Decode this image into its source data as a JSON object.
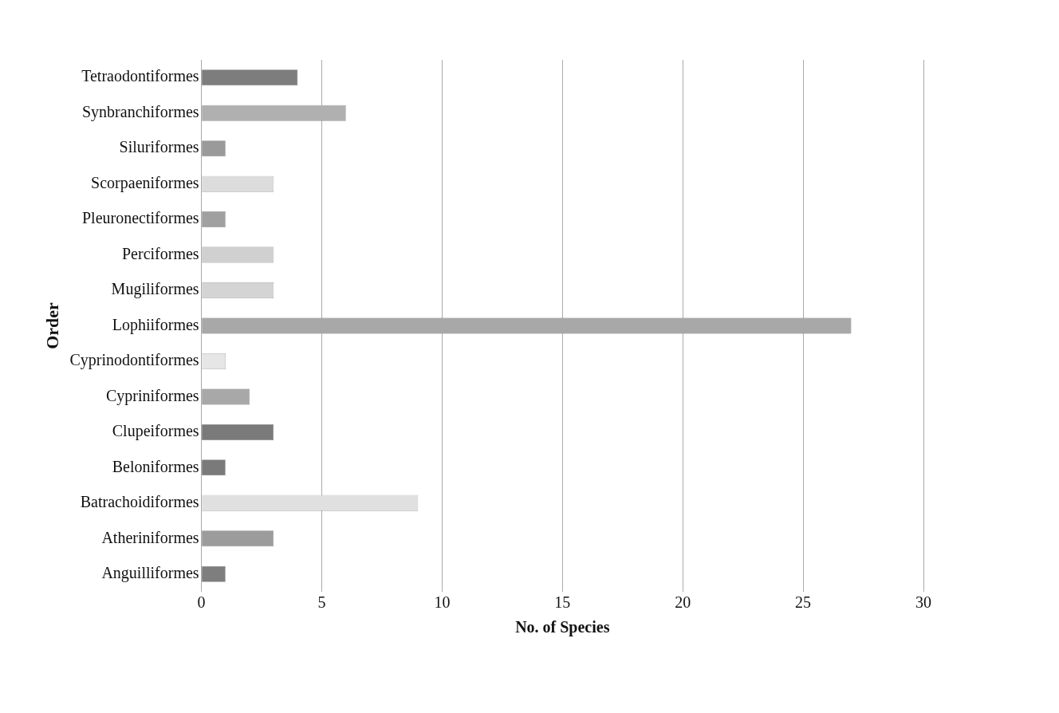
{
  "chart_data": {
    "type": "bar",
    "orientation": "horizontal",
    "xlabel": "No. of Species",
    "ylabel": "Order",
    "categories": [
      "Tetraodontiformes",
      "Synbranchiformes",
      "Siluriformes",
      "Scorpaeniformes",
      "Pleuronectiformes",
      "Perciformes",
      "Mugiliformes",
      "Lophiiformes",
      "Cyprinodontiformes",
      "Cypriniformes",
      "Clupeiformes",
      "Beloniformes",
      "Batrachoidiformes",
      "Atheriniformes",
      "Anguilliformes"
    ],
    "values": [
      4,
      6,
      1,
      3,
      1,
      3,
      3,
      27,
      1,
      2,
      3,
      1,
      9,
      3,
      1
    ],
    "colors": [
      "#7d7d7d",
      "#b0b0b0",
      "#9a9a9a",
      "#dcdcdc",
      "#a0a0a0",
      "#d0d0d0",
      "#d4d4d4",
      "#a8a8a8",
      "#e6e6e6",
      "#a8a8a8",
      "#7a7a7a",
      "#7a7a7a",
      "#e0e0e0",
      "#9c9c9c",
      "#7e7e7e"
    ],
    "xlim": [
      0,
      30
    ],
    "xticks": [
      0,
      5,
      10,
      15,
      20,
      25,
      30
    ],
    "grid": "x",
    "legend": false
  }
}
